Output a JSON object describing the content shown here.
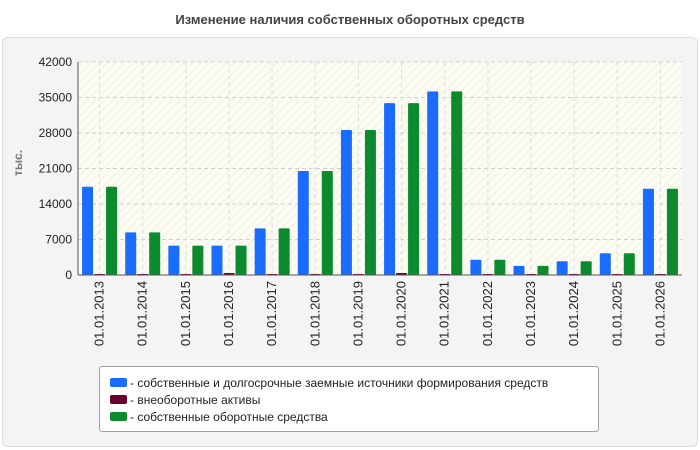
{
  "chart_data": {
    "type": "bar",
    "title": "Изменение наличия собственных оборотных средств",
    "ylabel": "тыс.",
    "xlabel": "",
    "ylim": [
      0,
      42000
    ],
    "yticks": [
      0,
      7000,
      14000,
      21000,
      28000,
      35000,
      42000
    ],
    "grid": true,
    "legend_position": "bottom",
    "categories": [
      "01.01.2013",
      "01.01.2014",
      "01.01.2015",
      "01.01.2016",
      "01.01.2017",
      "01.01.2018",
      "01.01.2019",
      "01.01.2020",
      "01.01.2021",
      "01.01.2022",
      "01.01.2023",
      "01.01.2024",
      "01.01.2025",
      "01.01.2026"
    ],
    "series": [
      {
        "name": "- собственные и долгосрочные заемные источники формирования средств",
        "color": "#1a6cff",
        "values": [
          17400,
          8400,
          5800,
          5800,
          9200,
          20500,
          28600,
          33900,
          36200,
          3000,
          1800,
          2700,
          4300,
          17000
        ]
      },
      {
        "name": "- внеоборотные активы",
        "color": "#6a0032",
        "values": [
          150,
          150,
          150,
          400,
          150,
          150,
          150,
          400,
          150,
          150,
          150,
          150,
          150,
          150
        ]
      },
      {
        "name": "- собственные оборотные средства",
        "color": "#0b8a2e",
        "values": [
          17400,
          8400,
          5800,
          5800,
          9200,
          20500,
          28600,
          33900,
          36200,
          3000,
          1800,
          2700,
          4300,
          17000
        ]
      }
    ]
  }
}
